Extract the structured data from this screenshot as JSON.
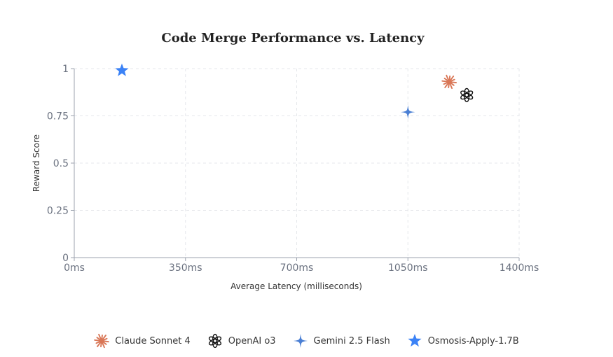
{
  "chart_data": {
    "type": "scatter",
    "title": "Code Merge Performance vs. Latency",
    "xlabel": "Average Latency (milliseconds)",
    "ylabel": "Reward Score",
    "xlim": [
      0,
      1400
    ],
    "ylim": [
      0,
      1
    ],
    "x_ticks": [
      0,
      350,
      700,
      1050,
      1400
    ],
    "x_tick_labels": [
      "0ms",
      "350ms",
      "700ms",
      "1050ms",
      "1400ms"
    ],
    "y_ticks": [
      0,
      0.25,
      0.5,
      0.75,
      1
    ],
    "y_tick_labels": [
      "0",
      "0.25",
      "0.5",
      "0.75",
      "1"
    ],
    "grid": true,
    "legend_position": "bottom",
    "series": [
      {
        "name": "Claude Sonnet 4",
        "x": 1180,
        "y": 0.93,
        "color": "#d97757",
        "icon": "claude-starburst-icon"
      },
      {
        "name": "OpenAI o3",
        "x": 1235,
        "y": 0.86,
        "color": "#111111",
        "icon": "openai-logo-icon"
      },
      {
        "name": "Gemini 2.5 Flash",
        "x": 1050,
        "y": 0.77,
        "color": "#4a7fd4",
        "icon": "gemini-sparkle-icon"
      },
      {
        "name": "Osmosis-Apply-1.7B",
        "x": 150,
        "y": 0.99,
        "color": "#3b82f6",
        "icon": "star-icon"
      }
    ]
  }
}
